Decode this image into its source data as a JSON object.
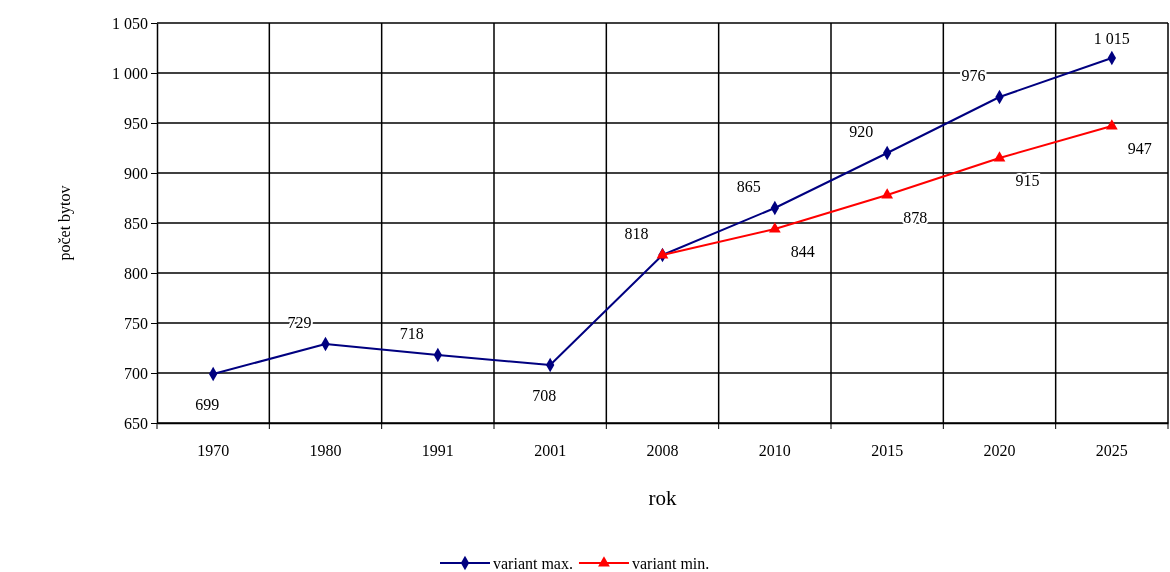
{
  "chart_data": {
    "type": "line",
    "xlabel": "rok",
    "ylabel": "počet bytov",
    "categories": [
      "1970",
      "1980",
      "1991",
      "2001",
      "2008",
      "2010",
      "2015",
      "2020",
      "2025"
    ],
    "ylim": [
      650,
      1050
    ],
    "yticks": [
      650,
      700,
      750,
      800,
      850,
      900,
      950,
      {
        "value": 1000,
        "label": "1 000"
      },
      {
        "value": 1050,
        "label": "1 050"
      }
    ],
    "grid": true,
    "legend": "bottom",
    "series": [
      {
        "name": "variant max.",
        "color": "#000080",
        "marker": "diamond",
        "values": [
          699,
          729,
          718,
          708,
          818,
          865,
          920,
          976,
          1015
        ],
        "value_labels": [
          "699",
          "729",
          "718",
          "708",
          "818",
          "865",
          "920",
          "976",
          "1 015"
        ]
      },
      {
        "name": "variant min.",
        "color": "#ff0000",
        "marker": "triangle",
        "values": [
          null,
          null,
          null,
          null,
          818,
          844,
          878,
          915,
          947
        ],
        "value_labels": [
          null,
          null,
          null,
          null,
          null,
          "844",
          "878",
          "915",
          "947"
        ]
      }
    ]
  }
}
